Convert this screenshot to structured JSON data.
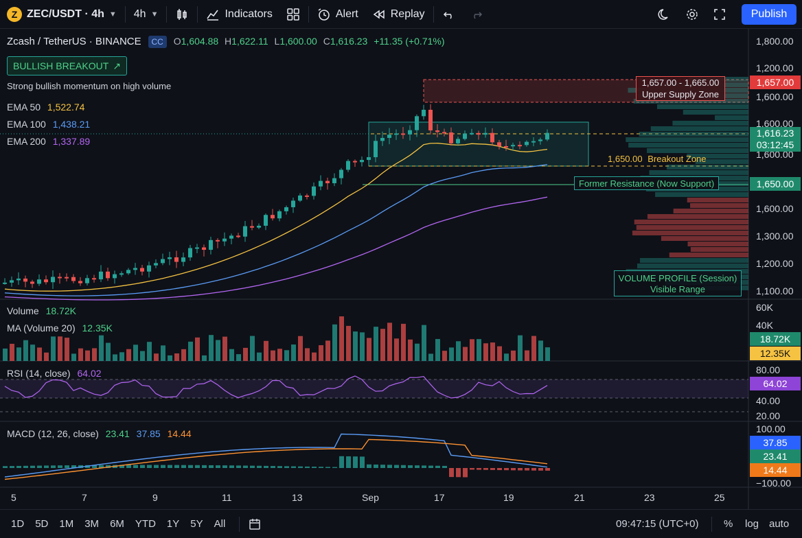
{
  "toolbar": {
    "symbol": "ZEC/USDT · 4h",
    "interval": "4h",
    "indicators": "Indicators",
    "alert": "Alert",
    "replay": "Replay",
    "publish": "Publish"
  },
  "header": {
    "pair": "Zcash / TetherUS · BINANCE",
    "cc": "CC",
    "o_label": "O",
    "o": "1,604.88",
    "h_label": "H",
    "h": "1,622.11",
    "l_label": "L",
    "l": "1,600.00",
    "c_label": "C",
    "c": "1,616.23",
    "change": "+11.35 (+0.71%)"
  },
  "badge": {
    "text": "BULLISH BREAKOUT",
    "subtitle": "Strong bullish momentum on high volume"
  },
  "ema": [
    {
      "label": "EMA 50",
      "value": "1,522.74",
      "color": "#f5c242"
    },
    {
      "label": "EMA 100",
      "value": "1,438.21",
      "color": "#5b9cf6"
    },
    {
      "label": "EMA 200",
      "value": "1,337.89",
      "color": "#b366f2"
    }
  ],
  "annotations": {
    "supply_range": "1,657.00 - 1,665.00",
    "supply_name": "Upper Supply Zone",
    "breakout_value": "1,650.00",
    "breakout_name": "Breakout Zone",
    "former_resistance": "Former Resistance (Now Support)",
    "vp_title": "VOLUME PROFILE (Session)",
    "vp_sub": "Visible Range"
  },
  "price_axis": [
    "1,800.00",
    "1,200.00",
    "1,600.00",
    "1,600.00",
    "1,600.00",
    "1,600.00",
    "1,300.00",
    "1,200.00",
    "1,100.00"
  ],
  "price_tags": {
    "supply": "1,657.00",
    "last": "1,616.23",
    "countdown": "03:12:45",
    "support": "1,650.00"
  },
  "volume": {
    "label": "Volume",
    "value": "18.72K",
    "ma_label": "MA (Volume 20)",
    "ma_value": "12.35K",
    "axis": [
      "60K",
      "40K"
    ],
    "tag1": "18.72K",
    "tag2": "12.35K"
  },
  "rsi": {
    "label": "RSI (14, close)",
    "value": "64.02",
    "axis": [
      "80.00",
      "40.00",
      "20.00"
    ],
    "tag": "64.02"
  },
  "macd": {
    "label": "MACD (12, 26, close)",
    "v1": "23.41",
    "v2": "37.85",
    "v3": "14.44",
    "axis": [
      "100.00",
      "−100.00"
    ],
    "tags": [
      "37.85",
      "23.41",
      "14.44"
    ]
  },
  "time_axis": [
    "5",
    "7",
    "9",
    "11",
    "13",
    "Sep",
    "17",
    "19",
    "21",
    "23",
    "25"
  ],
  "bottom": {
    "ranges": [
      "1D",
      "5D",
      "1M",
      "3M",
      "6M",
      "YTD",
      "1Y",
      "5Y",
      "All"
    ],
    "clock": "09:47:15 (UTC+0)",
    "pct": "%",
    "log": "log",
    "auto": "auto"
  },
  "colors": {
    "up": "#26a69a",
    "down": "#ef5350",
    "accent": "#2962ff"
  }
}
